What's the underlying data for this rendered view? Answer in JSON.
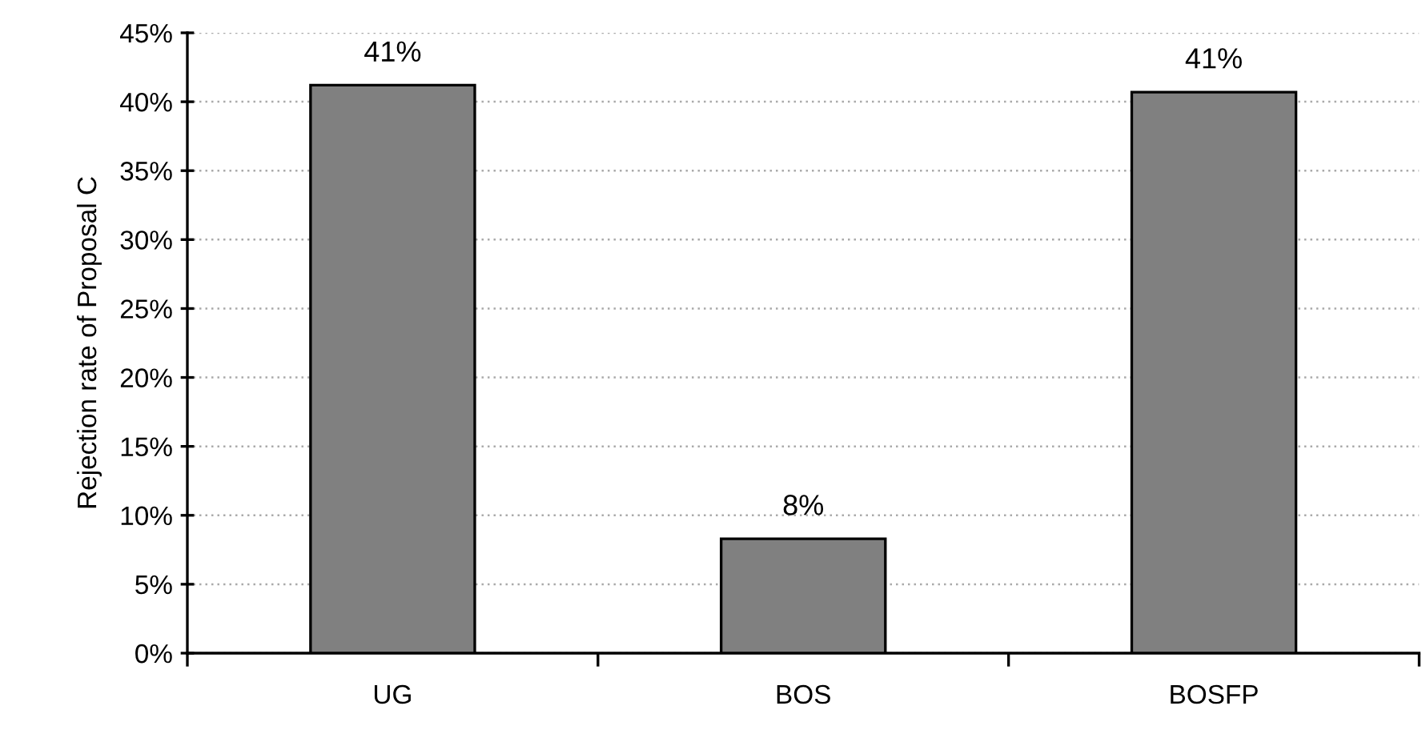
{
  "chart_data": {
    "type": "bar",
    "ylabel": "Rejection rate of Proposal C",
    "categories": [
      "UG",
      "BOS",
      "BOSFP"
    ],
    "values": [
      41.2,
      8.3,
      40.7
    ],
    "color": "#808080",
    "value_labels": [
      "41%",
      "8%",
      "41%"
    ],
    "ylim": [
      0,
      45
    ],
    "yticks": [
      {
        "value": 0,
        "label": "0%"
      },
      {
        "value": 5,
        "label": "5%"
      },
      {
        "value": 10,
        "label": "10%"
      },
      {
        "value": 15,
        "label": "15%"
      },
      {
        "value": 20,
        "label": "20%"
      },
      {
        "value": 25,
        "label": "25%"
      },
      {
        "value": 30,
        "label": "30%"
      },
      {
        "value": 35,
        "label": "35%"
      },
      {
        "value": 40,
        "label": "40%"
      },
      {
        "value": 45,
        "label": "45%"
      }
    ],
    "grid": "y",
    "legend": false
  }
}
